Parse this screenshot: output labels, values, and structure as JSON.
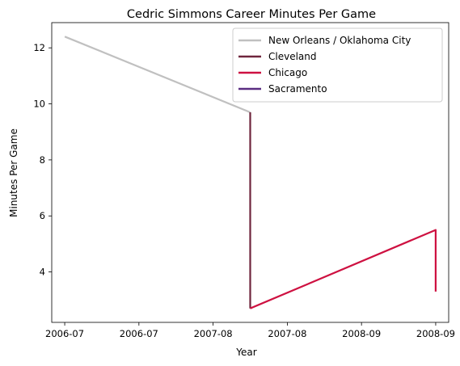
{
  "chart_data": {
    "type": "line",
    "title": "Cedric Simmons Career Minutes Per Game",
    "xlabel": "Year",
    "ylabel": "Minutes Per Game",
    "x_tick_labels": [
      "2006-07",
      "2006-07",
      "2007-08",
      "2007-08",
      "2008-09",
      "2008-09"
    ],
    "x_range": [
      -0.07,
      2.07
    ],
    "y_ticks": [
      4,
      6,
      8,
      10,
      12
    ],
    "ylim": [
      2.2,
      12.9
    ],
    "grid": false,
    "legend_position": "top-right",
    "series": [
      {
        "name": "New Orleans / Oklahoma City",
        "color": "#c0c0c0",
        "points": [
          {
            "x": 0,
            "y": 12.4
          },
          {
            "x": 1,
            "y": 9.7
          }
        ]
      },
      {
        "name": "Cleveland",
        "color": "#6f263d",
        "points": [
          {
            "x": 1,
            "y": 9.7
          },
          {
            "x": 1,
            "y": 2.7
          }
        ]
      },
      {
        "name": "Chicago",
        "color": "#ce1141",
        "points": [
          {
            "x": 1,
            "y": 2.7
          },
          {
            "x": 2,
            "y": 5.5
          },
          {
            "x": 2,
            "y": 3.3
          }
        ]
      },
      {
        "name": "Sacramento",
        "color": "#5a2d81",
        "points": []
      }
    ]
  }
}
